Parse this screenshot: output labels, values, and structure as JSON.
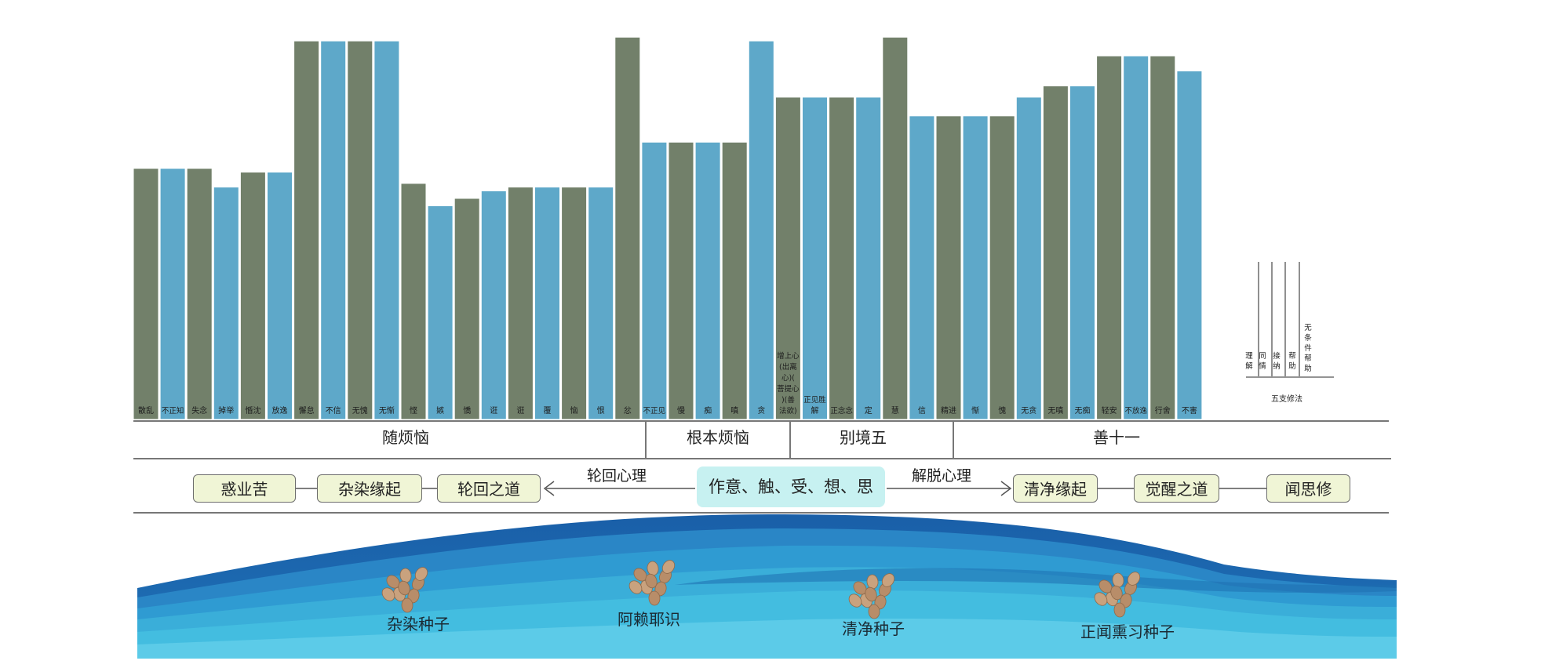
{
  "bars": [
    {
      "label": "散乱",
      "value": 67,
      "color": "green"
    },
    {
      "label": "不正知",
      "value": 67,
      "color": "blue"
    },
    {
      "label": "失念",
      "value": 67,
      "color": "green"
    },
    {
      "label": "掉举",
      "value": 62,
      "color": "blue"
    },
    {
      "label": "惛沈",
      "value": 66,
      "color": "green"
    },
    {
      "label": "放逸",
      "value": 66,
      "color": "blue"
    },
    {
      "label": "懈怠",
      "value": 101,
      "color": "green"
    },
    {
      "label": "不信",
      "value": 101,
      "color": "blue"
    },
    {
      "label": "无愧",
      "value": 101,
      "color": "green"
    },
    {
      "label": "无惭",
      "value": 101,
      "color": "blue"
    },
    {
      "label": "悭",
      "value": 63,
      "color": "green"
    },
    {
      "label": "嫉",
      "value": 57,
      "color": "blue"
    },
    {
      "label": "憍",
      "value": 59,
      "color": "green"
    },
    {
      "label": "诳",
      "value": 61,
      "color": "blue"
    },
    {
      "label": "诳",
      "value": 62,
      "color": "green"
    },
    {
      "label": "覆",
      "value": 62,
      "color": "blue"
    },
    {
      "label": "恼",
      "value": 62,
      "color": "green"
    },
    {
      "label": "恨",
      "value": 62,
      "color": "blue"
    },
    {
      "label": "忿",
      "value": 102,
      "color": "green"
    },
    {
      "label": "不正见",
      "value": 74,
      "color": "blue"
    },
    {
      "label": "慢",
      "value": 74,
      "color": "green"
    },
    {
      "label": "痴",
      "value": 74,
      "color": "blue"
    },
    {
      "label": "嗔",
      "value": 74,
      "color": "green"
    },
    {
      "label": "贪",
      "value": 101,
      "color": "blue"
    },
    {
      "label": "增上心（出离心）（菩提心）（善法欲）",
      "value": 86,
      "color": "green"
    },
    {
      "label": "正见胜解",
      "value": 86,
      "color": "blue"
    },
    {
      "label": "正念念",
      "value": 86,
      "color": "green"
    },
    {
      "label": "定",
      "value": 86,
      "color": "blue"
    },
    {
      "label": "慧",
      "value": 102,
      "color": "green"
    },
    {
      "label": "信",
      "value": 81,
      "color": "blue"
    },
    {
      "label": "精进",
      "value": 81,
      "color": "green"
    },
    {
      "label": "惭",
      "value": 81,
      "color": "blue"
    },
    {
      "label": "愧",
      "value": 81,
      "color": "green"
    },
    {
      "label": "无贪",
      "value": 86,
      "color": "blue"
    },
    {
      "label": "无嗔",
      "value": 89,
      "color": "green"
    },
    {
      "label": "无痴",
      "value": 89,
      "color": "blue"
    },
    {
      "label": "轻安",
      "value": 97,
      "color": "green"
    },
    {
      "label": "不放逸",
      "value": 97,
      "color": "blue"
    },
    {
      "label": "行舍",
      "value": 97,
      "color": "green"
    },
    {
      "label": "不害",
      "value": 93,
      "color": "blue"
    }
  ],
  "colors": {
    "green": "#72806a",
    "blue": "#5ea8c9"
  },
  "sections": [
    "随烦恼",
    "根本烦恼",
    "别境五",
    "善十一"
  ],
  "five_practices": {
    "items": [
      "理解",
      "同情",
      "接纳",
      "帮助",
      "无条件帮助"
    ],
    "title": "五支修法"
  },
  "flow": {
    "left_boxes": [
      "惑业苦",
      "杂染缘起",
      "轮回之道"
    ],
    "left_label": "轮回心理",
    "center": "作意、触、受、想、思",
    "right_label": "解脱心理",
    "right_boxes": [
      "清净缘起",
      "觉醒之道",
      "闻思修"
    ]
  },
  "seeds": [
    {
      "label": "杂染种子"
    },
    {
      "label": "阿赖耶识"
    },
    {
      "label": "清净种子"
    },
    {
      "label": "正闻熏习种子"
    }
  ]
}
